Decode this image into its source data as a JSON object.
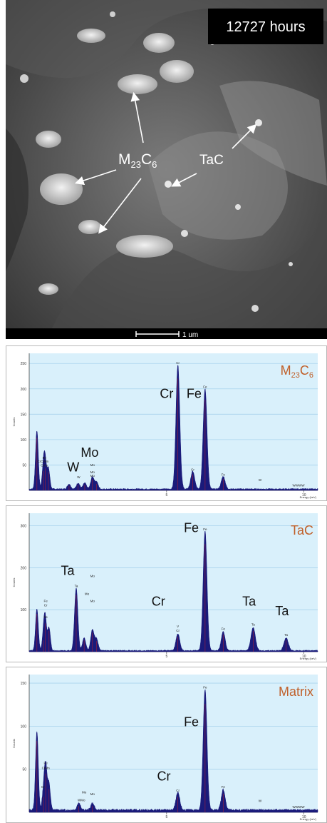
{
  "sem_image": {
    "time_label": "12727 hours",
    "scale_bar_label": "1 um",
    "annotations": {
      "m23c6": {
        "main": "M",
        "sub1": "23",
        "mid": "C",
        "sub2": "6"
      },
      "tac": "TaC"
    }
  },
  "colors": {
    "background": "#d9f0fb",
    "peak_fill": "#1a1a7a",
    "peak_marker": "#c0202a",
    "phase_label": "#c0602a",
    "grid": "#a9d3ec"
  },
  "chart_data": [
    {
      "type": "area",
      "phase_label": {
        "main": "M",
        "sub1": "23",
        "mid": "C",
        "sub2": "6"
      },
      "ylabel": "Counts",
      "xlabel": "Energy (keV)",
      "xlim": [
        0,
        10.5
      ],
      "ylim": [
        0,
        270
      ],
      "yticks": [
        50,
        100,
        150,
        200,
        250
      ],
      "xticks": [
        5,
        10
      ],
      "grid": true,
      "peaks": [
        {
          "x": 0.28,
          "y": 115,
          "w": 0.05
        },
        {
          "x": 0.52,
          "y": 42,
          "w": 0.05
        },
        {
          "x": 0.58,
          "y": 48,
          "w": 0.05
        },
        {
          "x": 0.7,
          "y": 40,
          "w": 0.05
        },
        {
          "x": 1.45,
          "y": 10,
          "w": 0.06
        },
        {
          "x": 1.78,
          "y": 12,
          "w": 0.06
        },
        {
          "x": 2.02,
          "y": 12,
          "w": 0.06
        },
        {
          "x": 2.3,
          "y": 24,
          "w": 0.06
        },
        {
          "x": 2.45,
          "y": 14,
          "w": 0.06
        },
        {
          "x": 5.41,
          "y": 245,
          "w": 0.07
        },
        {
          "x": 5.95,
          "y": 35,
          "w": 0.07
        },
        {
          "x": 6.4,
          "y": 198,
          "w": 0.07
        },
        {
          "x": 7.06,
          "y": 25,
          "w": 0.07
        }
      ],
      "element_labels": [
        {
          "text": "Cr",
          "x": 5.0,
          "y": 182
        },
        {
          "text": "Fe",
          "x": 6.0,
          "y": 182
        },
        {
          "text": "Mo",
          "x": 2.2,
          "y": 66
        },
        {
          "text": "W",
          "x": 1.6,
          "y": 37
        }
      ],
      "peak_tags": [
        {
          "text": "Fe",
          "x": 0.55,
          "y": 62
        },
        {
          "text": "CrCrMn",
          "x": 0.5,
          "y": 55
        },
        {
          "text": "CrFe",
          "x": 0.55,
          "y": 47
        },
        {
          "text": "Mo",
          "x": 2.3,
          "y": 48
        },
        {
          "text": "W",
          "x": 1.8,
          "y": 24
        },
        {
          "text": "Mo",
          "x": 2.3,
          "y": 34
        },
        {
          "text": "Mo",
          "x": 2.3,
          "y": 27
        },
        {
          "text": "Cr",
          "x": 5.41,
          "y": 249
        },
        {
          "text": "Fe",
          "x": 6.4,
          "y": 202
        },
        {
          "text": "Cr",
          "x": 5.95,
          "y": 39
        },
        {
          "text": "Fe",
          "x": 7.06,
          "y": 29
        },
        {
          "text": "W",
          "x": 8.4,
          "y": 18
        },
        {
          "text": "WWWW",
          "x": 9.8,
          "y": 8
        }
      ]
    },
    {
      "type": "area",
      "phase_label": {
        "main": "TaC"
      },
      "ylabel": "Counts",
      "xlabel": "Energy (keV)",
      "xlim": [
        0,
        10.5
      ],
      "ylim": [
        0,
        330
      ],
      "yticks": [
        100,
        200,
        300
      ],
      "xticks": [
        5,
        10
      ],
      "grid": true,
      "peaks": [
        {
          "x": 0.28,
          "y": 100,
          "w": 0.05
        },
        {
          "x": 0.52,
          "y": 30,
          "w": 0.05
        },
        {
          "x": 0.58,
          "y": 75,
          "w": 0.05
        },
        {
          "x": 0.72,
          "y": 55,
          "w": 0.05
        },
        {
          "x": 1.71,
          "y": 150,
          "w": 0.06
        },
        {
          "x": 2.0,
          "y": 30,
          "w": 0.06
        },
        {
          "x": 2.3,
          "y": 50,
          "w": 0.06
        },
        {
          "x": 2.45,
          "y": 28,
          "w": 0.06
        },
        {
          "x": 5.41,
          "y": 40,
          "w": 0.07
        },
        {
          "x": 6.4,
          "y": 285,
          "w": 0.07
        },
        {
          "x": 7.06,
          "y": 45,
          "w": 0.07
        },
        {
          "x": 8.15,
          "y": 55,
          "w": 0.08
        },
        {
          "x": 9.35,
          "y": 30,
          "w": 0.08
        }
      ],
      "element_labels": [
        {
          "text": "Fe",
          "x": 5.9,
          "y": 285
        },
        {
          "text": "Ta",
          "x": 1.4,
          "y": 183
        },
        {
          "text": "Cr",
          "x": 4.7,
          "y": 110
        },
        {
          "text": "Ta",
          "x": 8.0,
          "y": 110
        },
        {
          "text": "Ta",
          "x": 9.2,
          "y": 87
        }
      ],
      "peak_tags": [
        {
          "text": "Mo",
          "x": 2.3,
          "y": 178
        },
        {
          "text": "Ta",
          "x": 1.71,
          "y": 154
        },
        {
          "text": "Mo",
          "x": 2.1,
          "y": 135
        },
        {
          "text": "Mo",
          "x": 2.3,
          "y": 118
        },
        {
          "text": "Fe",
          "x": 0.6,
          "y": 118
        },
        {
          "text": "Cr",
          "x": 0.6,
          "y": 108
        },
        {
          "text": "Fe",
          "x": 0.6,
          "y": 80
        },
        {
          "text": "Fe",
          "x": 6.4,
          "y": 289
        },
        {
          "text": "V",
          "x": 5.41,
          "y": 58
        },
        {
          "text": "Cr",
          "x": 5.41,
          "y": 48
        },
        {
          "text": "Fe",
          "x": 7.06,
          "y": 52
        },
        {
          "text": "Ta",
          "x": 8.15,
          "y": 62
        },
        {
          "text": "Ta",
          "x": 9.35,
          "y": 37
        }
      ]
    },
    {
      "type": "area",
      "phase_label": {
        "main": "Matrix"
      },
      "ylabel": "Counts",
      "xlabel": "Energy (keV)",
      "xlim": [
        0,
        10.5
      ],
      "ylim": [
        0,
        160
      ],
      "yticks": [
        50,
        100,
        150
      ],
      "xticks": [
        5,
        10
      ],
      "grid": true,
      "peaks": [
        {
          "x": 0.28,
          "y": 92,
          "w": 0.05
        },
        {
          "x": 0.52,
          "y": 20,
          "w": 0.05
        },
        {
          "x": 0.6,
          "y": 50,
          "w": 0.05
        },
        {
          "x": 0.72,
          "y": 30,
          "w": 0.05
        },
        {
          "x": 1.8,
          "y": 8,
          "w": 0.06
        },
        {
          "x": 2.3,
          "y": 8,
          "w": 0.06
        },
        {
          "x": 5.41,
          "y": 20,
          "w": 0.07
        },
        {
          "x": 6.4,
          "y": 140,
          "w": 0.07
        },
        {
          "x": 7.06,
          "y": 24,
          "w": 0.07
        }
      ],
      "element_labels": [
        {
          "text": "Fe",
          "x": 5.9,
          "y": 100
        },
        {
          "text": "Cr",
          "x": 4.9,
          "y": 37
        }
      ],
      "peak_tags": [
        {
          "text": "Fe",
          "x": 0.6,
          "y": 56
        },
        {
          "text": "CrMn",
          "x": 0.6,
          "y": 50
        },
        {
          "text": "Cr",
          "x": 0.5,
          "y": 28
        },
        {
          "text": "Mo",
          "x": 2.0,
          "y": 22
        },
        {
          "text": "Mo",
          "x": 2.3,
          "y": 20
        },
        {
          "text": "WMo",
          "x": 1.9,
          "y": 13
        },
        {
          "text": "Cr",
          "x": 5.41,
          "y": 24
        },
        {
          "text": "Fe",
          "x": 6.4,
          "y": 144
        },
        {
          "text": "Fe",
          "x": 7.06,
          "y": 28
        },
        {
          "text": "W",
          "x": 8.4,
          "y": 12
        },
        {
          "text": "WWWW",
          "x": 9.8,
          "y": 5
        }
      ]
    }
  ]
}
